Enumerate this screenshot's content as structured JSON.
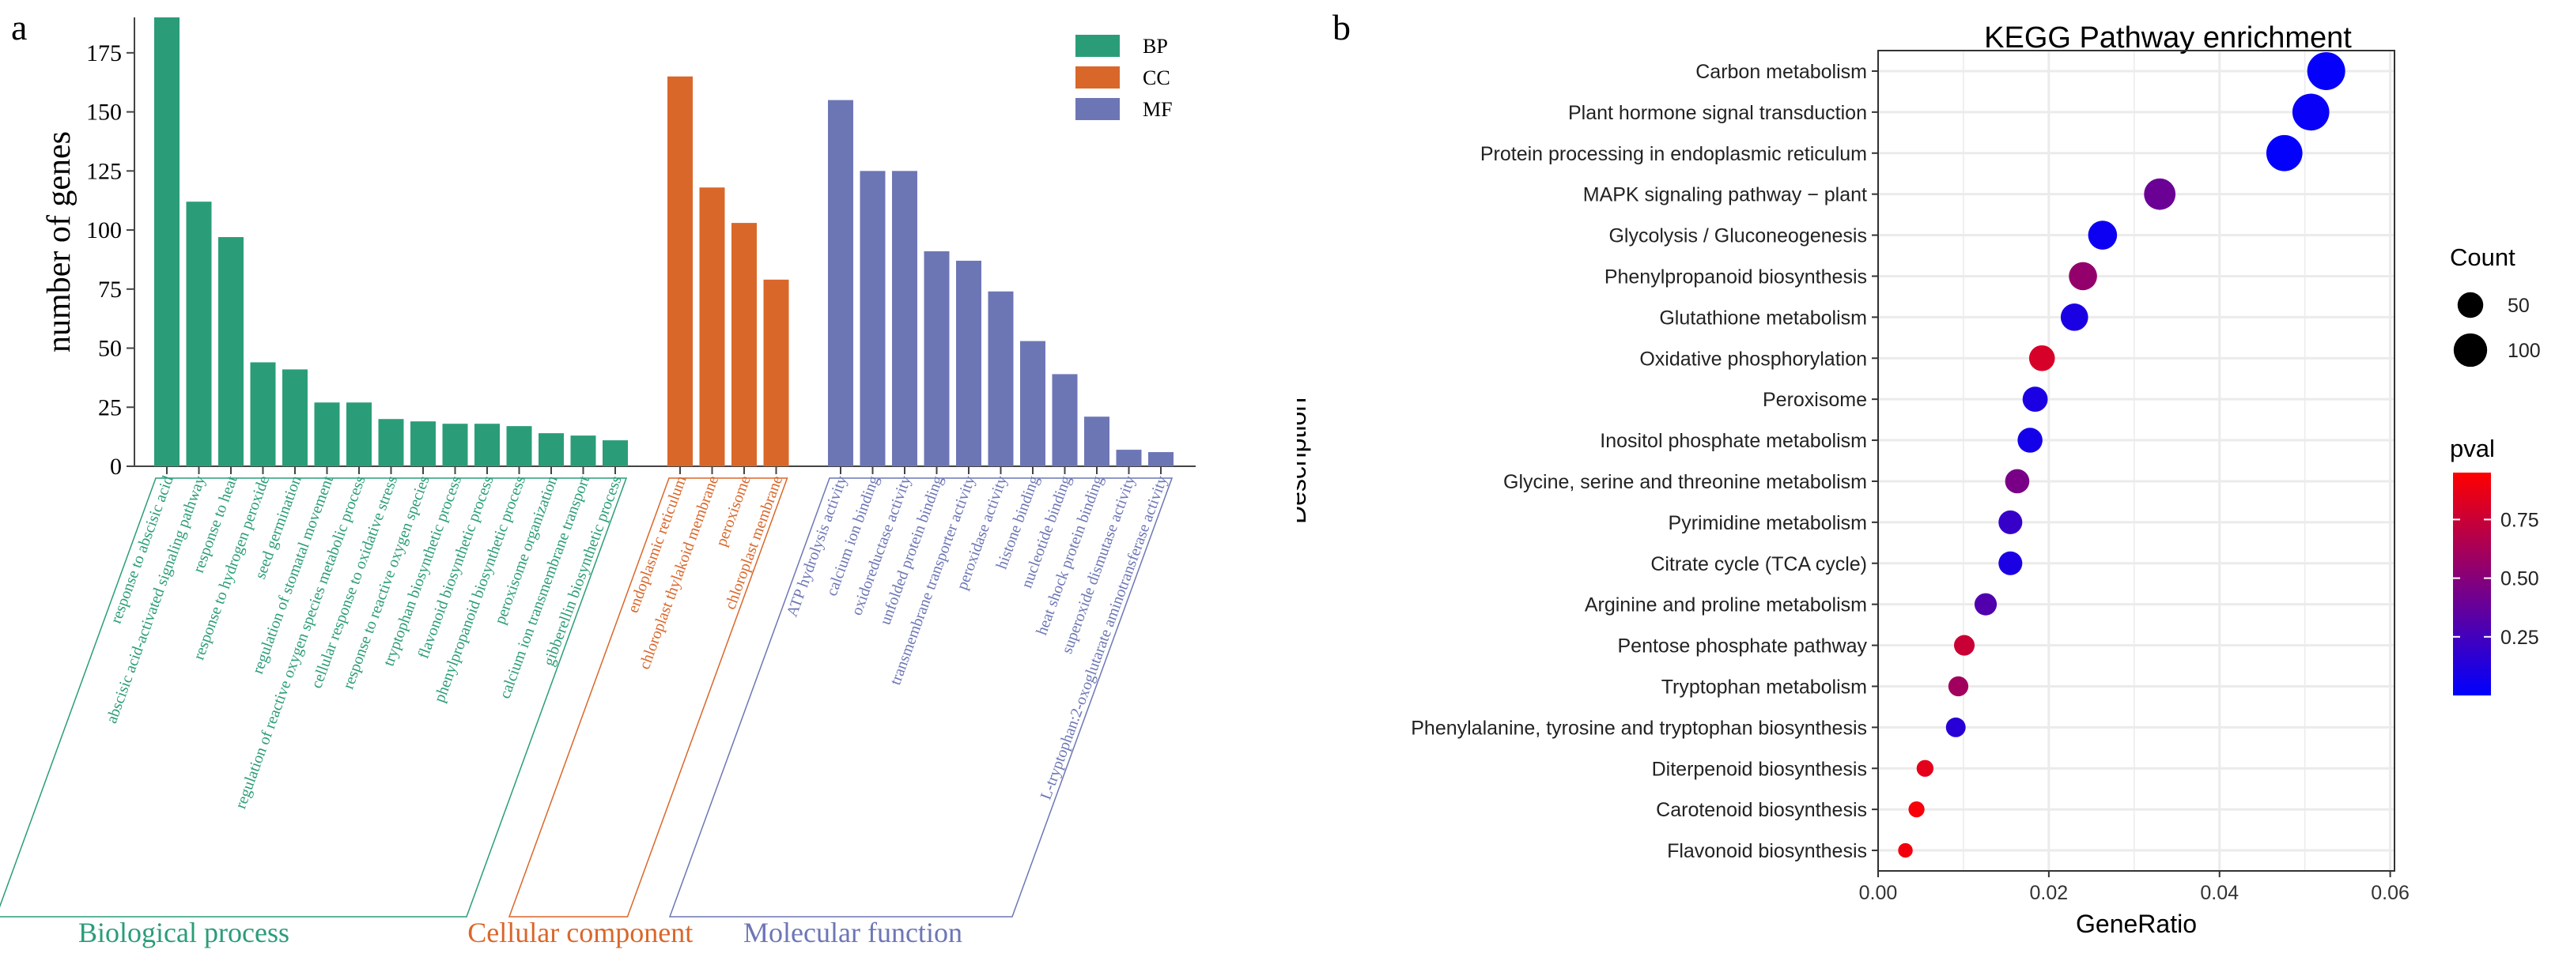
{
  "panel_labels": {
    "a": "a",
    "b": "b"
  },
  "colors": {
    "BP": "#2a9d78",
    "CC": "#d9672a",
    "MF": "#6d76b5"
  },
  "chart_data": [
    {
      "type": "bar",
      "panel": "a",
      "ylabel": "number of genes",
      "ylim": [
        0,
        190
      ],
      "yticks": [
        0,
        25,
        50,
        75,
        100,
        125,
        150,
        175
      ],
      "legend": {
        "placement": "top-right",
        "entries": [
          "BP",
          "CC",
          "MF"
        ]
      },
      "groups": [
        {
          "key": "BP",
          "name": "Biological process",
          "categories": [
            "response to abscisic acid",
            "abscisic acid-activated signaling pathway",
            "response to heat",
            "response to hydrogen peroxide",
            "seed germination",
            "regulation of stomatal movement",
            "regulation of reactive oxygen species metabolic process",
            "cellular response to oxidative stress",
            "response to reactive oxygen species",
            "tryptophan biosynthetic process",
            "flavonoid biosynthetic process",
            "phenylpropanoid biosynthetic process",
            "peroxisome organization",
            "calcium ion transmembrane transport",
            "gibberellin biosynthetic process"
          ],
          "values": [
            190,
            112,
            97,
            44,
            41,
            27,
            27,
            20,
            19,
            18,
            18,
            17,
            14,
            13,
            11
          ]
        },
        {
          "key": "CC",
          "name": "Cellular component",
          "categories": [
            "endoplasmic reticulum",
            "chloroplast thylakoid membrane",
            "peroxisome",
            "chloroplast membrane"
          ],
          "values": [
            165,
            118,
            103,
            79
          ]
        },
        {
          "key": "MF",
          "name": "Molecular function",
          "categories": [
            "ATP hydrolysis activity",
            "calcium ion binding",
            "oxidoreductase activity",
            "unfolded protein binding",
            "transmembrane transporter activity",
            "peroxidase activity",
            "histone binding",
            "nucleotide binding",
            "heat shock protein binding",
            "superoxide dismutase activity",
            "L-tryptophan:2-oxoglutarate aminotransferase activity"
          ],
          "values": [
            155,
            125,
            125,
            91,
            87,
            74,
            53,
            39,
            21,
            7,
            6
          ]
        }
      ]
    },
    {
      "type": "scatter",
      "panel": "b",
      "title": "KEGG Pathway enrichment",
      "xlabel": "GeneRatio",
      "ylabel": "Description",
      "xlim": [
        0.0,
        0.0605
      ],
      "xticks": [
        0.0,
        0.02,
        0.04,
        0.06
      ],
      "xtick_labels": [
        "0.00",
        "0.02",
        "0.04",
        "0.06"
      ],
      "grid": true,
      "size_legend": {
        "title": "Count",
        "values": [
          50,
          100
        ]
      },
      "color_legend": {
        "title": "pval",
        "ticks": [
          0.25,
          0.5,
          0.75
        ],
        "tick_labels": [
          "0.25",
          "0.50",
          "0.75"
        ],
        "range": [
          0.0,
          0.95
        ],
        "low_color": "#0000ff",
        "high_color": "#ff0000"
      },
      "points": [
        {
          "label": "Carbon metabolism",
          "x": 0.0525,
          "count": 120,
          "pval": 0.02
        },
        {
          "label": "Plant hormone signal transduction",
          "x": 0.0507,
          "count": 112,
          "pval": 0.03
        },
        {
          "label": "Protein processing in endoplasmic reticulum",
          "x": 0.0476,
          "count": 106,
          "pval": 0.01
        },
        {
          "label": "MAPK signaling pathway − plant",
          "x": 0.033,
          "count": 75,
          "pval": 0.4
        },
        {
          "label": "Glycolysis / Gluconeogenesis",
          "x": 0.0263,
          "count": 60,
          "pval": 0.05
        },
        {
          "label": "Phenylpropanoid biosynthesis",
          "x": 0.024,
          "count": 56,
          "pval": 0.55
        },
        {
          "label": "Glutathione metabolism",
          "x": 0.023,
          "count": 52,
          "pval": 0.1
        },
        {
          "label": "Oxidative phosphorylation",
          "x": 0.0192,
          "count": 44,
          "pval": 0.8
        },
        {
          "label": "Peroxisome",
          "x": 0.0184,
          "count": 41,
          "pval": 0.1
        },
        {
          "label": "Inositol phosphate metabolism",
          "x": 0.0178,
          "count": 40,
          "pval": 0.08
        },
        {
          "label": "Glycine, serine and threonine metabolism",
          "x": 0.0163,
          "count": 37,
          "pval": 0.45
        },
        {
          "label": "Pyrimidine metabolism",
          "x": 0.0155,
          "count": 35,
          "pval": 0.2
        },
        {
          "label": "Citrate cycle (TCA cycle)",
          "x": 0.0155,
          "count": 35,
          "pval": 0.1
        },
        {
          "label": "Arginine and proline metabolism",
          "x": 0.0126,
          "count": 29,
          "pval": 0.3
        },
        {
          "label": "Pentose phosphate pathway",
          "x": 0.0101,
          "count": 23,
          "pval": 0.75
        },
        {
          "label": "Tryptophan metabolism",
          "x": 0.0094,
          "count": 21,
          "pval": 0.6
        },
        {
          "label": "Phenylalanine, tyrosine and tryptophan biosynthesis",
          "x": 0.0091,
          "count": 20,
          "pval": 0.15
        },
        {
          "label": "Diterpenoid biosynthesis",
          "x": 0.0055,
          "count": 12,
          "pval": 0.85
        },
        {
          "label": "Carotenoid biosynthesis",
          "x": 0.0045,
          "count": 10,
          "pval": 0.92
        },
        {
          "label": "Flavonoid biosynthesis",
          "x": 0.0032,
          "count": 7,
          "pval": 0.9
        }
      ]
    }
  ]
}
